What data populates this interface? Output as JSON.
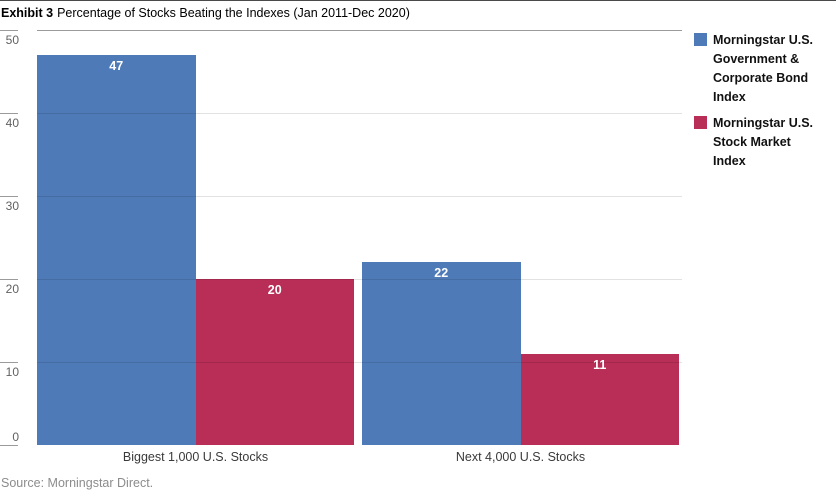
{
  "header": {
    "exhibit_label": "Exhibit 3",
    "title": "Percentage of Stocks Beating the Indexes (Jan 2011-Dec 2020)"
  },
  "chart_data": {
    "type": "bar",
    "title": "Percentage of Stocks Beating the Indexes (Jan 2011-Dec 2020)",
    "categories": [
      "Biggest 1,000 U.S. Stocks",
      "Next 4,000 U.S. Stocks"
    ],
    "series": [
      {
        "name": "Morningstar U.S. Government & Corporate Bond Index",
        "values": [
          47,
          22
        ],
        "color": "#4e7ab8"
      },
      {
        "name": "Morningstar U.S. Stock Market Index",
        "values": [
          20,
          11
        ],
        "color": "#b82e57"
      }
    ],
    "xlabel": "",
    "ylabel": "",
    "ylim": [
      0,
      50
    ],
    "yticks": [
      0,
      10,
      20,
      30,
      40,
      50
    ],
    "grid": true,
    "legend_position": "right",
    "value_labels": "inside-top-white-bold"
  },
  "footer": {
    "source": "Source: Morningstar Direct."
  }
}
